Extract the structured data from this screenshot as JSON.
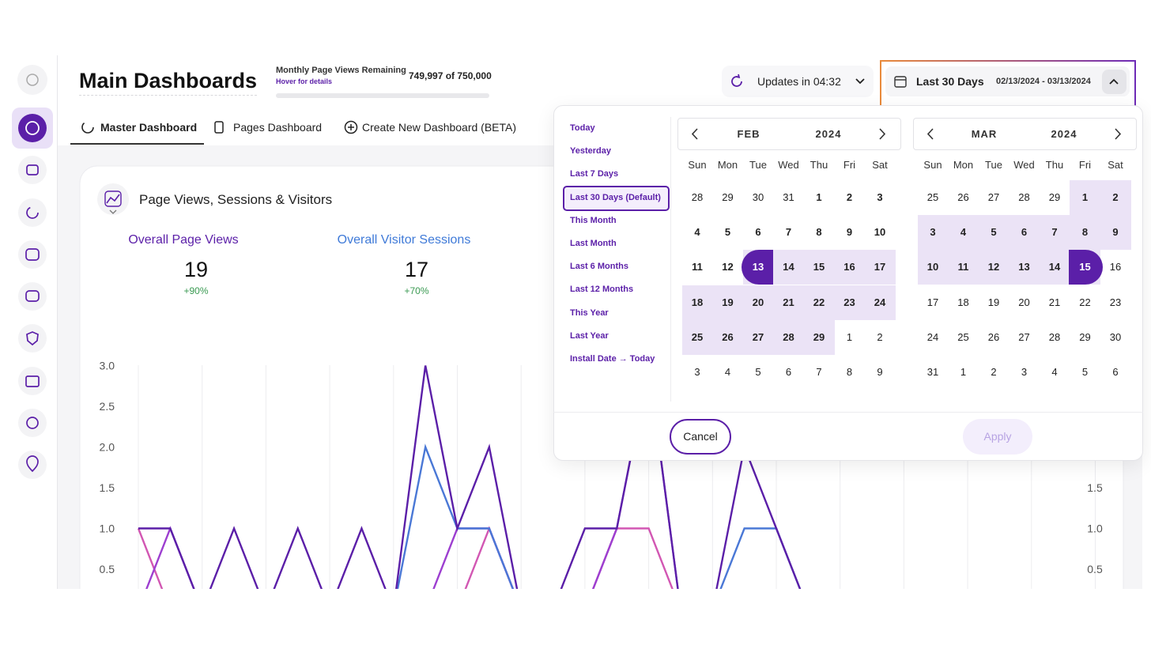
{
  "header": {
    "title": "Main Dashboards",
    "quota_label": "Monthly Page Views Remaining",
    "quota_hint": "Hover for details",
    "quota_value": "749,997 of 750,000",
    "updates": "Updates in 04:32",
    "range_label": "Last 30 Days",
    "range_dates": "02/13/2024 - 03/13/2024"
  },
  "tabs": [
    "Master Dashboard",
    "Pages Dashboard",
    "Create New Dashboard (BETA)"
  ],
  "card": {
    "title": "Page Views, Sessions & Visitors",
    "metrics": [
      {
        "label": "Overall Page Views",
        "value": 19,
        "change": "+90%",
        "color": "#5b1fa8"
      },
      {
        "label": "Overall Visitor Sessions",
        "value": 17,
        "change": "+70%",
        "color": "#3f7ad8"
      }
    ]
  },
  "chart_data": {
    "type": "line",
    "ylim": [
      0,
      3
    ],
    "yticks": [
      0.5,
      {
        "value": 1,
        "label": "1.0"
      },
      1.5,
      {
        "value": 2,
        "label": "2.0"
      },
      2.5,
      {
        "value": 3,
        "label": "3.0"
      }
    ],
    "y2lim": [
      0,
      3
    ],
    "y2ticks": [
      0.5,
      {
        "value": 1,
        "label": "1.0"
      },
      1.5
    ],
    "series": [
      {
        "color": "#d257b3",
        "values": [
          1,
          0,
          0,
          0,
          0,
          0,
          0,
          0,
          0,
          0,
          0,
          1,
          0,
          0,
          0,
          1,
          1,
          0,
          0,
          0,
          0,
          0
        ]
      },
      {
        "color": "#9d3fd0",
        "values": [
          0,
          1,
          0,
          0,
          0,
          0,
          0,
          0,
          0,
          0,
          1,
          1,
          0,
          0,
          0,
          1,
          3,
          0,
          0,
          0,
          0,
          0
        ]
      },
      {
        "color": "#4a78d6",
        "values": [
          0,
          0,
          0,
          0,
          0,
          0,
          0,
          0,
          0,
          2,
          1,
          1,
          0,
          0,
          0,
          0,
          0,
          0,
          0,
          1,
          1,
          0
        ]
      },
      {
        "color": "#5b1fa8",
        "values": [
          1,
          1,
          0,
          1,
          0,
          1,
          0,
          1,
          0,
          3,
          1,
          2,
          0,
          0,
          1,
          1,
          3,
          0,
          0,
          2,
          1,
          0
        ]
      }
    ]
  },
  "date_picker": {
    "presets": [
      "Today",
      "Yesterday",
      "Last 7 Days",
      "Last 30 Days (Default)",
      "This Month",
      "Last Month",
      "Last 6 Months",
      "Last 12 Months",
      "This Year",
      "Last Year",
      "Install Date → Today"
    ],
    "weekdays": [
      "Sun",
      "Mon",
      "Tue",
      "Wed",
      "Thu",
      "Fri",
      "Sat"
    ],
    "months": [
      {
        "name": "FEB",
        "year": "2024",
        "days": [
          28,
          29,
          30,
          31,
          1,
          2,
          3,
          4,
          5,
          6,
          7,
          8,
          9,
          10,
          11,
          12,
          13,
          14,
          15,
          16,
          17,
          18,
          19,
          20,
          21,
          22,
          23,
          24,
          25,
          26,
          27,
          28,
          29,
          1,
          2,
          3,
          4,
          5,
          6,
          7,
          8,
          9
        ]
      },
      {
        "name": "MAR",
        "year": "2024",
        "days": [
          25,
          26,
          27,
          28,
          29,
          1,
          2,
          3,
          4,
          5,
          6,
          7,
          8,
          9,
          10,
          11,
          12,
          13,
          14,
          15,
          16,
          17,
          18,
          19,
          20,
          21,
          22,
          23,
          24,
          25,
          26,
          27,
          28,
          29,
          30,
          31,
          1,
          2,
          3,
          4,
          5,
          6
        ]
      }
    ],
    "cancel": "Cancel",
    "apply": "Apply"
  }
}
